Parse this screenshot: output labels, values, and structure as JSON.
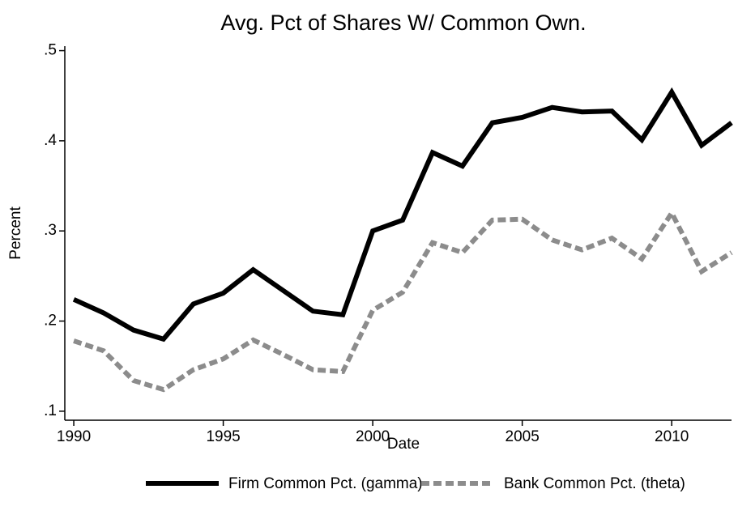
{
  "chart_data": {
    "type": "line",
    "title": "Avg. Pct of Shares W/ Common Own.",
    "xlabel": "Date",
    "ylabel": "Percent",
    "x": [
      1990,
      1991,
      1992,
      1993,
      1994,
      1995,
      1996,
      1997,
      1998,
      1999,
      2000,
      2001,
      2002,
      2003,
      2004,
      2005,
      2006,
      2007,
      2008,
      2009,
      2010,
      2011,
      2012
    ],
    "series": [
      {
        "name": "Firm Common Pct. (gamma)",
        "color": "#000000",
        "dash": "solid",
        "values": [
          0.224,
          0.209,
          0.19,
          0.18,
          0.219,
          0.231,
          0.257,
          0.234,
          0.211,
          0.207,
          0.3,
          0.312,
          0.387,
          0.372,
          0.42,
          0.426,
          0.437,
          0.432,
          0.433,
          0.401,
          0.454,
          0.395,
          0.42
        ]
      },
      {
        "name": "Bank Common Pct. (theta)",
        "color": "#8c8c8c",
        "dash": "dashed",
        "values": [
          0.178,
          0.167,
          0.134,
          0.124,
          0.146,
          0.158,
          0.179,
          0.163,
          0.146,
          0.144,
          0.212,
          0.232,
          0.287,
          0.276,
          0.312,
          0.313,
          0.29,
          0.279,
          0.292,
          0.269,
          0.32,
          0.255,
          0.276
        ]
      }
    ],
    "xlim": [
      1989.7,
      2012
    ],
    "xticks": [
      1990,
      1995,
      2000,
      2005,
      2010
    ],
    "ylim": [
      0.09,
      0.505
    ],
    "yticks": [
      {
        "value": 0.1,
        "label": ".1"
      },
      {
        "value": 0.2,
        "label": ".2"
      },
      {
        "value": 0.3,
        "label": ".3"
      },
      {
        "value": 0.4,
        "label": ".4"
      },
      {
        "value": 0.5,
        "label": ".5"
      }
    ],
    "grid": false,
    "legend": "bottom"
  }
}
